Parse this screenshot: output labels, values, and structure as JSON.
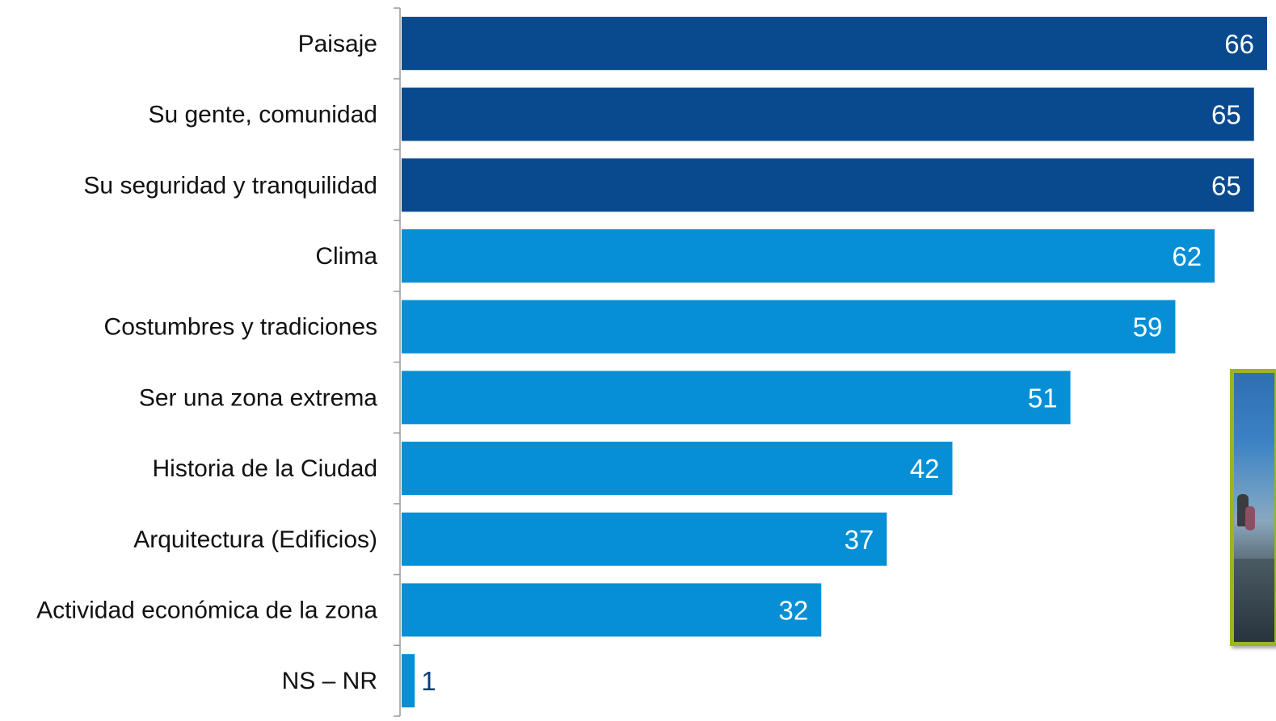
{
  "chart_data": {
    "type": "bar",
    "orientation": "horizontal",
    "categories": [
      "Paisaje",
      "Su gente, comunidad",
      "Su seguridad y tranquilidad",
      "Clima",
      "Costumbres y tradiciones",
      "Ser una zona extrema",
      "Historia de la Ciudad",
      "Arquitectura (Edificios)",
      "Actividad económica de la zona",
      "NS – NR"
    ],
    "values": [
      66,
      65,
      65,
      62,
      59,
      51,
      42,
      37,
      32,
      1
    ],
    "value_labels": [
      "66",
      "65",
      "65",
      "62",
      "59",
      "51",
      "42",
      "37",
      "32",
      "1"
    ],
    "highlight_count": 3,
    "colors": {
      "highlight": "#094a8f",
      "normal": "#078fd6",
      "label_inside": "#ffffff",
      "label_outside": "#0a3f7a",
      "axis": "#999999"
    },
    "title": "",
    "xlabel": "",
    "ylabel": "",
    "xlim": [
      0,
      66
    ],
    "grid": false,
    "legend": "none"
  },
  "photo": {
    "icon": "photo-thumbnail",
    "frame_color": "#9bb521"
  }
}
